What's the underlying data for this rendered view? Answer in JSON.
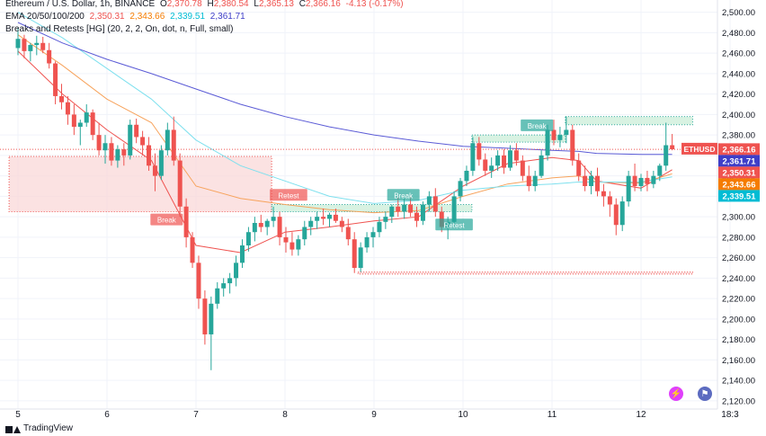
{
  "legend": {
    "symbol": "Ethereum / U.S. Dollar, 1h, BINANCE",
    "o_label": "O",
    "o": "2,370.78",
    "h_label": "H",
    "h": "2,380.54",
    "l_label": "L",
    "l": "2,365.13",
    "c_label": "C",
    "c": "2,366.16",
    "change": "-4.13 (-0.17%)",
    "ema_title": "EMA 20/50/100/200",
    "ema_values": [
      "2,350.31",
      "2,343.66",
      "2,339.51",
      "2,361.71"
    ],
    "indicator_title": "Breaks and Retests [HG] (20, 2, 2, On, dot, n, Full, small)"
  },
  "colors": {
    "up": "#26a69a",
    "down": "#ef5350",
    "ema20": "#ef5350",
    "ema50": "#f7a35c",
    "ema100": "#7ee0ee",
    "ema200": "#5b5bd6",
    "resistance_box": "#f9d6d6",
    "support_box": "#c8ecd6",
    "price_line": "#ef5350"
  },
  "chart_data": {
    "type": "candlestick",
    "symbol": "ETHUSD",
    "interval": "1h",
    "ylim": [
      2112,
      2512
    ],
    "y_ticks": [
      "2,500.00",
      "2,480.00",
      "2,460.00",
      "2,440.00",
      "2,420.00",
      "2,400.00",
      "2,380.00",
      "2,360.00",
      "2,340.00",
      "2,320.00",
      "2,300.00",
      "2,280.00",
      "2,260.00",
      "2,240.00",
      "2,220.00",
      "2,200.00",
      "2,180.00",
      "2,160.00",
      "2,140.00",
      "2,120.00"
    ],
    "x_ticks": [
      "5",
      "6",
      "7",
      "8",
      "9",
      "10",
      "11",
      "12",
      "18:3"
    ],
    "grid": true,
    "price_labels": [
      {
        "text": "ETHUSD",
        "value": 2366.16,
        "color": "#ef5350"
      },
      {
        "text": "2,366.16",
        "value": 2366.16,
        "color": "#ef5350"
      },
      {
        "text": "2,361.71",
        "value": 2361.71,
        "color": "#3e3ec8"
      },
      {
        "text": "2,350.31",
        "value": 2350.31,
        "color": "#ef5350"
      },
      {
        "text": "2,343.66",
        "value": 2343.66,
        "color": "#f57c00"
      },
      {
        "text": "2,339.51",
        "value": 2339.51,
        "color": "#00bcd4"
      }
    ],
    "annotations": [
      {
        "text": "Break",
        "type": "down",
        "x": 1.67,
        "value": 2297
      },
      {
        "text": "Retest",
        "type": "down",
        "x": 3.04,
        "value": 2321
      },
      {
        "text": "Break",
        "type": "up",
        "x": 4.33,
        "value": 2321
      },
      {
        "text": "Retest",
        "type": "up",
        "x": 4.9,
        "value": 2292
      },
      {
        "text": "Break",
        "type": "up",
        "x": 5.83,
        "value": 2389
      }
    ],
    "zones": [
      {
        "type": "resistance",
        "x0": -0.1,
        "x1": 2.85,
        "y0": 2305,
        "y1": 2359
      },
      {
        "type": "support",
        "x0": 2.85,
        "x1": 5.1,
        "y0": 2305,
        "y1": 2312
      },
      {
        "type": "support",
        "x0": 5.1,
        "x1": 6.15,
        "y0": 2373,
        "y1": 2380
      },
      {
        "type": "support",
        "x0": 6.15,
        "x1": 7.58,
        "y0": 2390,
        "y1": 2398
      },
      {
        "type": "resistance",
        "x0": 3.82,
        "x1": 7.58,
        "y0": 2244,
        "y1": 2246
      }
    ],
    "ema": {
      "ema20": [
        [
          0,
          2462
        ],
        [
          0.5,
          2420
        ],
        [
          1,
          2385
        ],
        [
          1.5,
          2355
        ],
        [
          2,
          2272
        ],
        [
          2.5,
          2265
        ],
        [
          3,
          2285
        ],
        [
          3.5,
          2290
        ],
        [
          4,
          2296
        ],
        [
          4.5,
          2300
        ],
        [
          5,
          2330
        ],
        [
          5.5,
          2352
        ],
        [
          6,
          2358
        ],
        [
          6.3,
          2355
        ],
        [
          6.5,
          2335
        ],
        [
          7,
          2328
        ],
        [
          7.35,
          2346
        ]
      ],
      "ema50": [
        [
          0,
          2478
        ],
        [
          0.5,
          2448
        ],
        [
          1,
          2415
        ],
        [
          1.5,
          2392
        ],
        [
          2,
          2330
        ],
        [
          2.5,
          2318
        ],
        [
          3,
          2312
        ],
        [
          3.5,
          2307
        ],
        [
          4,
          2304
        ],
        [
          4.5,
          2306
        ],
        [
          5,
          2320
        ],
        [
          5.5,
          2332
        ],
        [
          6,
          2338
        ],
        [
          6.3,
          2340
        ],
        [
          6.5,
          2334
        ],
        [
          7,
          2333
        ],
        [
          7.35,
          2342
        ]
      ],
      "ema100": [
        [
          0,
          2500
        ],
        [
          0.5,
          2475
        ],
        [
          1,
          2445
        ],
        [
          1.5,
          2415
        ],
        [
          2,
          2375
        ],
        [
          2.5,
          2350
        ],
        [
          3,
          2335
        ],
        [
          3.5,
          2320
        ],
        [
          4,
          2313
        ],
        [
          4.5,
          2316
        ],
        [
          5,
          2326
        ],
        [
          5.5,
          2330
        ],
        [
          6,
          2332
        ],
        [
          6.3,
          2334
        ],
        [
          6.5,
          2334
        ],
        [
          7,
          2334
        ],
        [
          7.35,
          2339
        ]
      ],
      "ema200": [
        [
          0,
          2490
        ],
        [
          0.5,
          2470
        ],
        [
          1,
          2454
        ],
        [
          1.5,
          2440
        ],
        [
          2,
          2425
        ],
        [
          2.5,
          2410
        ],
        [
          3,
          2398
        ],
        [
          3.5,
          2388
        ],
        [
          4,
          2380
        ],
        [
          4.5,
          2374
        ],
        [
          5,
          2369
        ],
        [
          5.5,
          2367
        ],
        [
          6,
          2365
        ],
        [
          6.3,
          2364
        ],
        [
          6.5,
          2362
        ],
        [
          7,
          2361
        ],
        [
          7.35,
          2361
        ]
      ]
    },
    "candles": [
      [
        0.0,
        2465,
        2485,
        2458,
        2474
      ],
      [
        0.07,
        2474,
        2478,
        2455,
        2462
      ],
      [
        0.14,
        2462,
        2470,
        2452,
        2468
      ],
      [
        0.21,
        2468,
        2477,
        2458,
        2470
      ],
      [
        0.28,
        2470,
        2476,
        2460,
        2463
      ],
      [
        0.35,
        2463,
        2470,
        2445,
        2450
      ],
      [
        0.42,
        2450,
        2452,
        2410,
        2418
      ],
      [
        0.49,
        2418,
        2430,
        2405,
        2412
      ],
      [
        0.56,
        2412,
        2418,
        2390,
        2400
      ],
      [
        0.63,
        2400,
        2410,
        2380,
        2388
      ],
      [
        0.7,
        2388,
        2395,
        2370,
        2392
      ],
      [
        0.77,
        2392,
        2410,
        2388,
        2402
      ],
      [
        0.84,
        2402,
        2405,
        2375,
        2380
      ],
      [
        0.91,
        2380,
        2392,
        2360,
        2365
      ],
      [
        0.98,
        2365,
        2380,
        2352,
        2372
      ],
      [
        1.05,
        2372,
        2378,
        2350,
        2355
      ],
      [
        1.12,
        2355,
        2370,
        2348,
        2366
      ],
      [
        1.19,
        2366,
        2372,
        2350,
        2360
      ],
      [
        1.26,
        2360,
        2395,
        2356,
        2390
      ],
      [
        1.33,
        2390,
        2396,
        2372,
        2378
      ],
      [
        1.4,
        2378,
        2384,
        2360,
        2370
      ],
      [
        1.47,
        2370,
        2378,
        2345,
        2350
      ],
      [
        1.54,
        2350,
        2362,
        2325,
        2340
      ],
      [
        1.61,
        2340,
        2370,
        2336,
        2365
      ],
      [
        1.68,
        2365,
        2392,
        2360,
        2385
      ],
      [
        1.75,
        2385,
        2398,
        2350,
        2355
      ],
      [
        1.82,
        2355,
        2362,
        2300,
        2310
      ],
      [
        1.89,
        2310,
        2318,
        2270,
        2280
      ],
      [
        1.96,
        2280,
        2285,
        2250,
        2255
      ],
      [
        2.03,
        2255,
        2262,
        2210,
        2220
      ],
      [
        2.1,
        2220,
        2228,
        2175,
        2185
      ],
      [
        2.17,
        2185,
        2222,
        2150,
        2215
      ],
      [
        2.24,
        2215,
        2236,
        2210,
        2230
      ],
      [
        2.31,
        2230,
        2240,
        2222,
        2235
      ],
      [
        2.38,
        2235,
        2245,
        2225,
        2240
      ],
      [
        2.45,
        2240,
        2262,
        2232,
        2255
      ],
      [
        2.52,
        2255,
        2278,
        2250,
        2272
      ],
      [
        2.59,
        2272,
        2290,
        2266,
        2285
      ],
      [
        2.66,
        2285,
        2300,
        2276,
        2294
      ],
      [
        2.73,
        2294,
        2302,
        2285,
        2290
      ],
      [
        2.8,
        2290,
        2298,
        2282,
        2296
      ],
      [
        2.87,
        2296,
        2310,
        2290,
        2300
      ],
      [
        2.94,
        2300,
        2305,
        2272,
        2280
      ],
      [
        3.01,
        2280,
        2290,
        2265,
        2275
      ],
      [
        3.08,
        2275,
        2285,
        2262,
        2268
      ],
      [
        3.15,
        2268,
        2282,
        2262,
        2278
      ],
      [
        3.22,
        2278,
        2296,
        2272,
        2290
      ],
      [
        3.29,
        2290,
        2300,
        2282,
        2296
      ],
      [
        3.36,
        2296,
        2305,
        2288,
        2300
      ],
      [
        3.43,
        2300,
        2308,
        2292,
        2298
      ],
      [
        3.5,
        2298,
        2304,
        2290,
        2302
      ],
      [
        3.57,
        2302,
        2308,
        2294,
        2296
      ],
      [
        3.64,
        2296,
        2300,
        2285,
        2290
      ],
      [
        3.71,
        2290,
        2298,
        2272,
        2278
      ],
      [
        3.78,
        2278,
        2285,
        2245,
        2250
      ],
      [
        3.85,
        2250,
        2275,
        2246,
        2270
      ],
      [
        3.92,
        2270,
        2285,
        2265,
        2280
      ],
      [
        3.99,
        2280,
        2290,
        2270,
        2285
      ],
      [
        4.06,
        2285,
        2300,
        2280,
        2295
      ],
      [
        4.13,
        2295,
        2305,
        2288,
        2300
      ],
      [
        4.2,
        2300,
        2312,
        2294,
        2310
      ],
      [
        4.27,
        2310,
        2320,
        2300,
        2305
      ],
      [
        4.34,
        2305,
        2318,
        2298,
        2312
      ],
      [
        4.41,
        2312,
        2320,
        2300,
        2304
      ],
      [
        4.48,
        2304,
        2310,
        2290,
        2296
      ],
      [
        4.55,
        2296,
        2315,
        2292,
        2312
      ],
      [
        4.62,
        2312,
        2325,
        2305,
        2320
      ],
      [
        4.69,
        2320,
        2328,
        2300,
        2305
      ],
      [
        4.76,
        2305,
        2310,
        2285,
        2290
      ],
      [
        4.83,
        2290,
        2300,
        2278,
        2295
      ],
      [
        4.9,
        2295,
        2325,
        2290,
        2320
      ],
      [
        4.97,
        2320,
        2338,
        2315,
        2335
      ],
      [
        5.04,
        2335,
        2350,
        2330,
        2345
      ],
      [
        5.11,
        2345,
        2378,
        2340,
        2372
      ],
      [
        5.18,
        2372,
        2378,
        2350,
        2356
      ],
      [
        5.25,
        2356,
        2362,
        2340,
        2345
      ],
      [
        5.32,
        2345,
        2358,
        2338,
        2350
      ],
      [
        5.39,
        2350,
        2365,
        2345,
        2360
      ],
      [
        5.46,
        2360,
        2366,
        2342,
        2348
      ],
      [
        5.53,
        2348,
        2370,
        2345,
        2365
      ],
      [
        5.6,
        2365,
        2372,
        2350,
        2355
      ],
      [
        5.67,
        2355,
        2360,
        2335,
        2340
      ],
      [
        5.74,
        2340,
        2350,
        2325,
        2330
      ],
      [
        5.81,
        2330,
        2345,
        2325,
        2340
      ],
      [
        5.88,
        2340,
        2365,
        2338,
        2360
      ],
      [
        5.95,
        2360,
        2390,
        2355,
        2385
      ],
      [
        6.02,
        2385,
        2395,
        2370,
        2375
      ],
      [
        6.09,
        2375,
        2388,
        2368,
        2380
      ],
      [
        6.16,
        2380,
        2398,
        2372,
        2385
      ],
      [
        6.23,
        2385,
        2390,
        2350,
        2355
      ],
      [
        6.3,
        2355,
        2362,
        2335,
        2340
      ],
      [
        6.37,
        2340,
        2350,
        2325,
        2330
      ],
      [
        6.44,
        2330,
        2345,
        2322,
        2340
      ],
      [
        6.51,
        2340,
        2348,
        2320,
        2325
      ],
      [
        6.58,
        2325,
        2332,
        2310,
        2320
      ],
      [
        6.65,
        2320,
        2325,
        2300,
        2312
      ],
      [
        6.72,
        2312,
        2318,
        2282,
        2292
      ],
      [
        6.79,
        2292,
        2320,
        2286,
        2315
      ],
      [
        6.86,
        2315,
        2345,
        2310,
        2340
      ],
      [
        6.93,
        2340,
        2352,
        2325,
        2330
      ],
      [
        7.0,
        2330,
        2342,
        2325,
        2338
      ],
      [
        7.07,
        2338,
        2345,
        2325,
        2332
      ],
      [
        7.14,
        2332,
        2345,
        2328,
        2340
      ],
      [
        7.21,
        2340,
        2352,
        2335,
        2350
      ],
      [
        7.28,
        2350,
        2392,
        2345,
        2370
      ],
      [
        7.35,
        2370,
        2381,
        2365,
        2366
      ]
    ]
  },
  "footer": {
    "brand": "TradingView"
  }
}
